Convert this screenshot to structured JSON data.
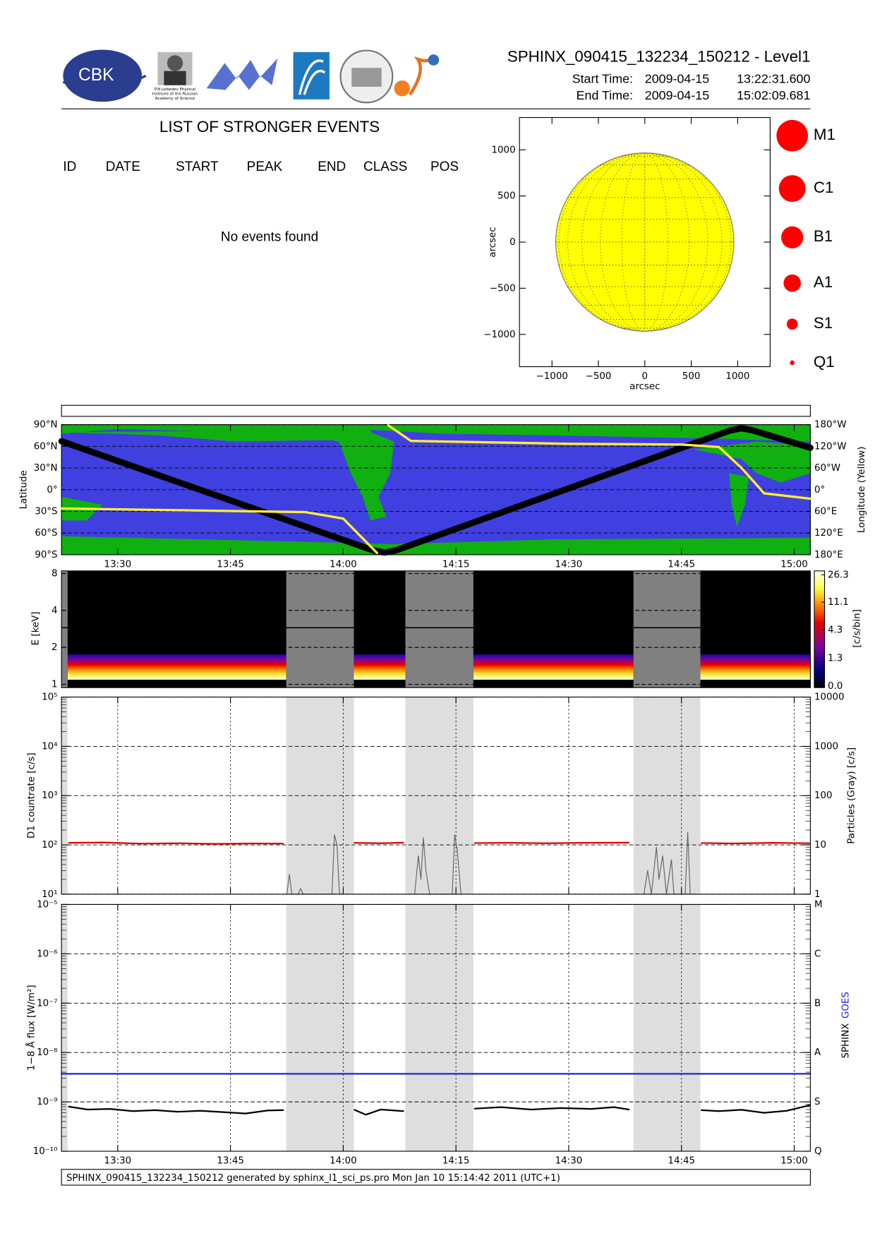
{
  "header": {
    "logo_text": "CBK",
    "logo_caption": [
      "P.N.Lebedev Physical",
      "Institute of the Russian",
      "Academy of Science"
    ],
    "title": "SPHINX_090415_132234_150212 - Level1",
    "start_label": "Start Time:",
    "start_date": "2009-04-15",
    "start_time": "13:22:31.600",
    "end_label": "End Time:",
    "end_date": "2009-04-15",
    "end_time": "15:02:09.681"
  },
  "events": {
    "title": "LIST OF STRONGER EVENTS",
    "columns": [
      "ID",
      "DATE",
      "START",
      "PEAK",
      "END",
      "CLASS",
      "POS"
    ],
    "message": "No events found"
  },
  "chart_data": [
    {
      "type": "disk",
      "xlabel": "arcsec",
      "ylabel": "arcsec",
      "xlim": [
        -1350,
        1350
      ],
      "ylim": [
        -1350,
        1350
      ],
      "xticks": [
        {
          "value": -1000,
          "label": "−1000"
        },
        {
          "value": -500,
          "label": "−500"
        },
        0,
        500,
        1000
      ],
      "yticks": [
        {
          "value": -1000,
          "label": "−1000"
        },
        {
          "value": -500,
          "label": "−500"
        },
        0,
        500,
        1000
      ],
      "disk_color": "#ffff00",
      "legend": [
        "M1",
        "C1",
        "B1",
        "A1",
        "S1",
        "Q1"
      ],
      "legend_color": "#ff0000"
    },
    {
      "type": "orbit",
      "ylabel": "Latitude",
      "y2label": "Longitude (Yellow)",
      "xlim": [
        "13:22:31",
        "15:02:09"
      ],
      "xticks": [
        "13:30",
        "13:45",
        "14:00",
        "14:15",
        "14:30",
        "14:45",
        "15:00"
      ],
      "ylim": [
        -90,
        90
      ],
      "yticks": [
        {
          "value": 90,
          "label": "90°N"
        },
        {
          "value": 60,
          "label": "60°N"
        },
        {
          "value": 30,
          "label": "30°N"
        },
        {
          "value": 0,
          "label": "0°"
        },
        {
          "value": -30,
          "label": "30°S"
        },
        {
          "value": -60,
          "label": "60°S"
        },
        {
          "value": -90,
          "label": "90°S"
        }
      ],
      "y2lim": [
        180,
        -180
      ],
      "y2ticks": [
        {
          "value": -180,
          "label": "180°W"
        },
        {
          "value": -120,
          "label": "120°W"
        },
        {
          "value": -60,
          "label": "60°W"
        },
        {
          "value": 0,
          "label": "0°"
        },
        {
          "value": 60,
          "label": "60°E"
        },
        {
          "value": 120,
          "label": "120°E"
        },
        {
          "value": 180,
          "label": "180°E"
        }
      ],
      "grid": true,
      "series": [
        {
          "color": "#000000",
          "x": [
            "13:22:31",
            "14:04:00",
            "14:05:30",
            "14:07:00",
            "14:51:30",
            "14:53:00",
            "14:54:30",
            "15:02:09"
          ],
          "values": [
            67,
            -84,
            -87,
            -84,
            82,
            85,
            82,
            58
          ]
        },
        {
          "color": "#ffee33",
          "axis": "y2",
          "x": [
            "13:22:31",
            "13:55:00",
            "14:00:00",
            "14:04:30",
            "14:05:00",
            "14:06:00",
            "14:09:00",
            "14:30:00",
            "14:45:00",
            "14:50:00",
            "14:53:00",
            "14:56:00",
            "15:02:09"
          ],
          "values": [
            52,
            62,
            80,
            175,
            null,
            -178,
            -135,
            -127,
            -125,
            -118,
            -60,
            10,
            25
          ]
        }
      ]
    },
    {
      "type": "spectrogram",
      "ylabel": "E [keV]",
      "log": true,
      "xlim": [
        "13:22:31",
        "15:02:09"
      ],
      "ylim": [
        0.94,
        8.4
      ],
      "yticks": [
        1,
        2,
        4,
        8
      ],
      "gaps": [
        [
          "13:22:31",
          "13:23:20"
        ],
        [
          "13:52:25",
          "14:01:25"
        ],
        [
          "14:08:16",
          "14:17:19"
        ],
        [
          "14:38:37",
          "14:47:31"
        ]
      ],
      "colorbar": {
        "label": "[c/s/bin]",
        "clim": [
          0,
          26.3
        ],
        "ticks": [
          26.3,
          11.1,
          4.3,
          1.3,
          {
            "value": 0,
            "label": "0.0"
          }
        ]
      }
    },
    {
      "type": "line",
      "log": true,
      "ylabel": "D1 countrate [c/s]",
      "y2label": "Particles (Gray) [c/s]",
      "xlim": [
        "13:22:31",
        "15:02:09"
      ],
      "xticks": [
        "13:30",
        "13:45",
        "14:00",
        "14:15",
        "14:30",
        "14:45",
        "15:00"
      ],
      "ylim": [
        10,
        100000
      ],
      "yticks": [
        {
          "value": 100000,
          "label": "10⁵"
        },
        {
          "value": 10000,
          "label": "10⁴"
        },
        {
          "value": 1000,
          "label": "10³"
        },
        {
          "value": 100,
          "label": "10²"
        },
        {
          "value": 10,
          "label": "10¹"
        }
      ],
      "y2lim": [
        1,
        10000
      ],
      "y2ticks": [
        10000,
        1000,
        100,
        10,
        1
      ],
      "grid": true,
      "series": [
        {
          "color": "#dd0000",
          "x": [
            "13:23:30",
            "13:28",
            "13:33",
            "13:38",
            "13:43",
            "13:48",
            "13:52",
            "13:57",
            "14:01:30",
            "14:05",
            "14:08",
            "14:13",
            "14:17:30",
            "14:22",
            "14:27",
            "14:32",
            "14:38",
            "14:43",
            "14:47:40",
            "14:52",
            "14:57",
            "15:02"
          ],
          "values": [
            110,
            112,
            106,
            108,
            105,
            107,
            106,
            null,
            110,
            108,
            111,
            null,
            109,
            110,
            108,
            110,
            111,
            null,
            109,
            107,
            110,
            108
          ]
        },
        {
          "color": "#606060",
          "axis": "y2",
          "x": [
            "13:52:30",
            "13:52:50",
            "13:53:10",
            "13:54:00",
            "13:54:20",
            "13:54:40",
            "13:58:30",
            "13:58:50",
            "13:59:10",
            "13:59:30",
            "14:05:00",
            "14:09:30",
            "14:10:00",
            "14:10:20",
            "14:10:40",
            "14:11:00",
            "14:11:30",
            "14:14:30",
            "14:14:50",
            "14:15:10",
            "14:15:40",
            "14:30:00",
            "14:40:00",
            "14:40:30",
            "14:41:00",
            "14:41:40",
            "14:42:00",
            "14:42:30",
            "14:43:00",
            "14:43:40",
            "14:44:00",
            "14:45:30",
            "14:45:50",
            "14:46:10"
          ],
          "values": [
            1,
            2.5,
            1,
            1,
            1.3,
            1,
            1,
            16,
            10,
            1,
            null,
            1,
            6,
            2,
            14,
            3,
            1,
            1,
            16,
            8,
            1,
            null,
            1,
            3,
            1,
            9,
            2,
            6,
            1,
            5,
            1,
            1,
            18,
            1
          ]
        }
      ]
    },
    {
      "type": "line",
      "log": true,
      "ylabel": "1−8 Å flux [W/m²]",
      "xlim": [
        "13:22:31",
        "15:02:09"
      ],
      "xticks": [
        "13:30",
        "13:45",
        "14:00",
        "14:15",
        "14:30",
        "14:45",
        "15:00"
      ],
      "ylim": [
        1e-10,
        1e-05
      ],
      "yticks": [
        {
          "value": 1e-05,
          "label": "10⁻⁵"
        },
        {
          "value": 1e-06,
          "label": "10⁻⁶"
        },
        {
          "value": 1e-07,
          "label": "10⁻⁷"
        },
        {
          "value": 1e-08,
          "label": "10⁻⁸"
        },
        {
          "value": 1e-09,
          "label": "10⁻⁹"
        },
        {
          "value": 1e-10,
          "label": "10⁻¹⁰"
        }
      ],
      "y2lim": [
        1e-10,
        1e-05
      ],
      "y2ticks": [
        {
          "value": 1e-05,
          "label": "M"
        },
        {
          "value": 1e-06,
          "label": "C"
        },
        {
          "value": 1e-07,
          "label": "B"
        },
        {
          "value": 1e-08,
          "label": "A"
        },
        {
          "value": 1e-09,
          "label": "S"
        },
        {
          "value": 1e-10,
          "label": "Q"
        }
      ],
      "grid": true,
      "series": [
        {
          "name": "SPHINX",
          "color": "#000000",
          "x": [
            "13:23:30",
            "13:26",
            "13:29",
            "13:32",
            "13:35",
            "13:38",
            "13:41",
            "13:44",
            "13:47",
            "13:50",
            "13:52",
            "13:57",
            "14:01:30",
            "14:03",
            "14:05",
            "14:08",
            "14:13",
            "14:17:30",
            "14:21",
            "14:25",
            "14:29",
            "14:33",
            "14:36",
            "14:38",
            "14:43",
            "14:47:40",
            "14:50",
            "14:53",
            "14:56",
            "14:59",
            "15:02"
          ],
          "values": [
            8e-10,
            7e-10,
            7.2e-10,
            6.5e-10,
            6.8e-10,
            6.3e-10,
            6.6e-10,
            6.2e-10,
            5.8e-10,
            6.7e-10,
            6.8e-10,
            null,
            6.9e-10,
            5.5e-10,
            7e-10,
            6.5e-10,
            null,
            7.3e-10,
            7.8e-10,
            7e-10,
            7.5e-10,
            7.2e-10,
            7.8e-10,
            7e-10,
            null,
            6.8e-10,
            6.5e-10,
            6.9e-10,
            6e-10,
            6.6e-10,
            8.5e-10
          ]
        },
        {
          "name": "GOES",
          "color": "#2222dd",
          "x": [
            "13:22:31",
            "15:02:09"
          ],
          "values": [
            3.7e-09,
            3.7e-09
          ]
        }
      ]
    }
  ],
  "footer": "SPHINX_090415_132234_150212 generated by sphinx_l1_sci_ps.pro Mon Jan 10 15:14:42 2011 (UTC+1)"
}
